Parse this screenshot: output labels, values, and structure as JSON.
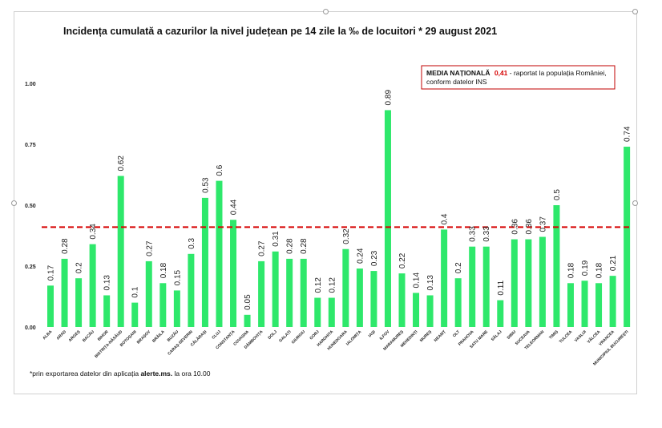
{
  "chart_data": {
    "type": "bar",
    "title": "Incidența cumulată a cazurilor la nivel județean pe 14 zile la ‰ de locuitori * 29 august 2021",
    "xlabel": "",
    "ylabel": "",
    "ylim": [
      0,
      1.0
    ],
    "yticks": [
      "0.00",
      "0.25",
      "0.50",
      "0.75",
      "1.00"
    ],
    "grid": false,
    "bar_color": "#2ee86b",
    "reference_line": {
      "value": 0.41,
      "color": "#d60000",
      "style": "dashed",
      "label_bold": "MEDIA NAȚIONALĂ",
      "label_value": "0,41",
      "label_rest": " - raportat la populația României,",
      "label_line2": "conform datelor INS",
      "value_color": "#d60000",
      "placement": "top-right"
    },
    "categories": [
      "ALBA",
      "ARAD",
      "ARGEȘ",
      "BACĂU",
      "BIHOR",
      "BISTRIȚA-NĂSĂUD",
      "BOTOȘANI",
      "BRAȘOV",
      "BRĂILA",
      "BUZĂU",
      "CARAȘ-SEVERIN",
      "CĂLĂRAȘI",
      "CLUJ",
      "CONSTANȚA",
      "COVASNA",
      "DÂMBOVIȚA",
      "DOLJ",
      "GALAȚI",
      "GIURGIU",
      "GORJ",
      "HARGHITA",
      "HUNEDOARA",
      "IALOMIȚA",
      "IAȘI",
      "ILFOV",
      "MARAMUREȘ",
      "MEHEDINȚI",
      "MUREȘ",
      "NEAMȚ",
      "OLT",
      "PRAHOVA",
      "SATU MARE",
      "SĂLAJ",
      "SIBIU",
      "SUCEAVA",
      "TELEORMAN",
      "TIMIȘ",
      "TULCEA",
      "VASLUI",
      "VÂLCEA",
      "VRANCEA",
      "MUNICIPIUL BUCUREȘTI"
    ],
    "values": [
      0.17,
      0.28,
      0.2,
      0.34,
      0.13,
      0.62,
      0.1,
      0.27,
      0.18,
      0.15,
      0.3,
      0.53,
      0.6,
      0.44,
      0.05,
      0.27,
      0.31,
      0.28,
      0.28,
      0.12,
      0.12,
      0.32,
      0.24,
      0.23,
      0.89,
      0.22,
      0.14,
      0.13,
      0.4,
      0.2,
      0.33,
      0.33,
      0.11,
      0.36,
      0.36,
      0.37,
      0.5,
      0.18,
      0.19,
      0.18,
      0.21,
      0.74
    ],
    "value_labels": [
      "0.17",
      "0.28",
      "0.2",
      "0.34",
      "0.13",
      "0.62",
      "0.1",
      "0.27",
      "0.18",
      "0.15",
      "0.3",
      "0.53",
      "0.6",
      "0.44",
      "0.05",
      "0.27",
      "0.31",
      "0.28",
      "0.28",
      "0.12",
      "0.12",
      "0.32",
      "0.24",
      "0.23",
      "0.89",
      "0.22",
      "0.14",
      "0.13",
      "0.4",
      "0.2",
      "0.33",
      "0.33",
      "0.11",
      "0.36",
      "0.36",
      "0.37",
      "0.5",
      "0.18",
      "0.19",
      "0.18",
      "0.21",
      "0.74"
    ]
  },
  "footnote": {
    "before": "*prin exportarea datelor din aplicația ",
    "bold": "alerte.ms.",
    "after": " la ora 10.00"
  }
}
